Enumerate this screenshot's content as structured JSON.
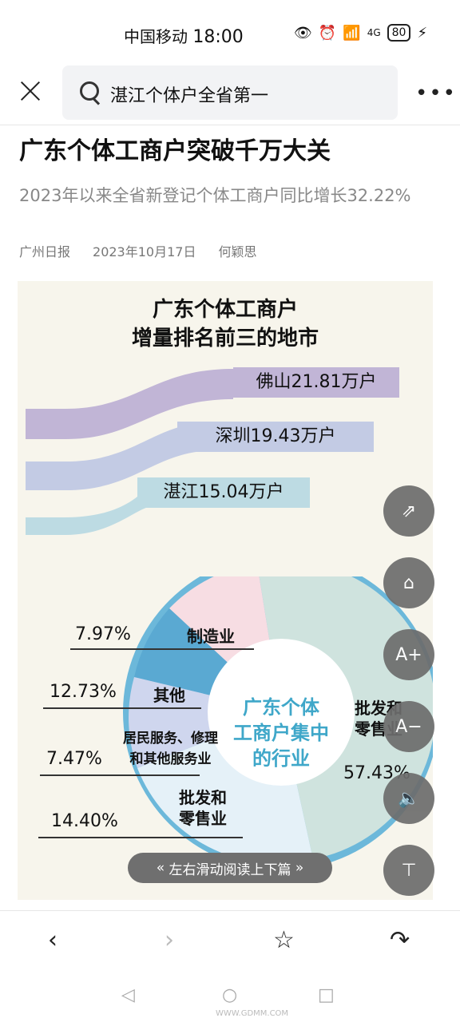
{
  "status": {
    "carrier": "中国移动",
    "time": "18:00",
    "battery": "80",
    "network": "4G"
  },
  "search": {
    "query": "湛江个体户全省第一"
  },
  "article": {
    "title": "广东个体工商户突破千万大关",
    "subtitle": "2023年以来全省新登记个体工商户同比增长32.22%",
    "source": "广州日报",
    "date": "2023年10月17日",
    "author": "何颖思"
  },
  "infographic": {
    "heading_line1": "广东个体工商户",
    "heading_line2": "增量排名前三的地市",
    "cities": [
      {
        "label": "佛山21.81万户",
        "color": "#c1b5d6"
      },
      {
        "label": "深圳19.43万户",
        "color": "#c3cbe4"
      },
      {
        "label": "湛江15.04万户",
        "color": "#bddbe3"
      }
    ],
    "center_line1": "广东个体",
    "center_line2": "工商户集中",
    "center_line3": "的行业",
    "segments": [
      {
        "name": "制造业",
        "pct": "7.97%",
        "color": "#f7dde3"
      },
      {
        "name": "其他",
        "pct": "12.73%",
        "color": "#6db6d9"
      },
      {
        "name_line1": "居民服务、修理",
        "name_line2": "和其他服务业",
        "pct": "7.47%",
        "color": "#cfd6ee"
      },
      {
        "name_line1": "批发和",
        "name_line2": "零售业",
        "pct": "14.40%",
        "color": "#e5f1f8"
      },
      {
        "name_line1": "批发和",
        "name_line2": "零售业",
        "pct": "57.43%",
        "color": "#cfe3de"
      }
    ]
  },
  "ui": {
    "swipe_hint": "左右滑动阅读上下篇",
    "fab_share": "share-icon",
    "fab_home": "home-icon",
    "fab_font_up": "A+",
    "fab_font_down": "A−",
    "fab_speaker": "speaker-icon",
    "fab_top": "top-icon"
  },
  "watermark": "WWW.GDMM.COM"
}
